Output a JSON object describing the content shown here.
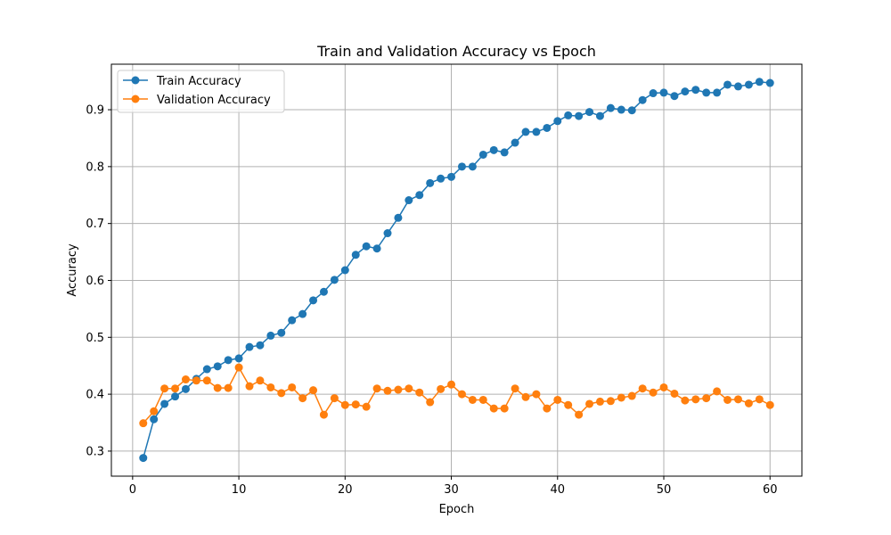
{
  "chart_data": {
    "type": "line",
    "title": "Train and Validation Accuracy vs Epoch",
    "xlabel": "Epoch",
    "ylabel": "Accuracy",
    "xlim": [
      -2,
      63
    ],
    "ylim": [
      0.256,
      0.98
    ],
    "xticks": [
      0,
      10,
      20,
      30,
      40,
      50,
      60
    ],
    "yticks": [
      0.3,
      0.4,
      0.5,
      0.6,
      0.7,
      0.8,
      0.9
    ],
    "xtick_labels": [
      "0",
      "10",
      "20",
      "30",
      "40",
      "50",
      "60"
    ],
    "ytick_labels": [
      "0.3",
      "0.4",
      "0.5",
      "0.6",
      "0.7",
      "0.8",
      "0.9"
    ],
    "grid": true,
    "legend_position": "top-left",
    "x": [
      1,
      2,
      3,
      4,
      5,
      6,
      7,
      8,
      9,
      10,
      11,
      12,
      13,
      14,
      15,
      16,
      17,
      18,
      19,
      20,
      21,
      22,
      23,
      24,
      25,
      26,
      27,
      28,
      29,
      30,
      31,
      32,
      33,
      34,
      35,
      36,
      37,
      38,
      39,
      40,
      41,
      42,
      43,
      44,
      45,
      46,
      47,
      48,
      49,
      50,
      51,
      52,
      53,
      54,
      55,
      56,
      57,
      58,
      59,
      60
    ],
    "series": [
      {
        "name": "Train Accuracy",
        "color": "#1f77b4",
        "values": [
          0.288,
          0.356,
          0.383,
          0.396,
          0.409,
          0.427,
          0.444,
          0.449,
          0.46,
          0.463,
          0.483,
          0.486,
          0.503,
          0.508,
          0.53,
          0.541,
          0.565,
          0.58,
          0.601,
          0.618,
          0.645,
          0.66,
          0.656,
          0.683,
          0.71,
          0.741,
          0.75,
          0.771,
          0.779,
          0.782,
          0.8,
          0.8,
          0.821,
          0.829,
          0.825,
          0.842,
          0.861,
          0.861,
          0.868,
          0.88,
          0.89,
          0.889,
          0.896,
          0.889,
          0.903,
          0.9,
          0.899,
          0.917,
          0.929,
          0.93,
          0.924,
          0.932,
          0.935,
          0.93,
          0.93,
          0.944,
          0.941,
          0.944,
          0.949,
          0.947
        ]
      },
      {
        "name": "Validation Accuracy",
        "color": "#ff7f0e",
        "values": [
          0.349,
          0.37,
          0.41,
          0.41,
          0.426,
          0.424,
          0.424,
          0.411,
          0.411,
          0.447,
          0.414,
          0.424,
          0.412,
          0.402,
          0.412,
          0.393,
          0.407,
          0.364,
          0.393,
          0.381,
          0.382,
          0.378,
          0.41,
          0.406,
          0.408,
          0.41,
          0.403,
          0.386,
          0.409,
          0.417,
          0.4,
          0.39,
          0.39,
          0.375,
          0.375,
          0.41,
          0.395,
          0.4,
          0.375,
          0.39,
          0.381,
          0.364,
          0.383,
          0.387,
          0.388,
          0.394,
          0.397,
          0.41,
          0.403,
          0.412,
          0.401,
          0.389,
          0.391,
          0.393,
          0.405,
          0.39,
          0.391,
          0.384,
          0.391,
          0.381
        ]
      }
    ]
  }
}
